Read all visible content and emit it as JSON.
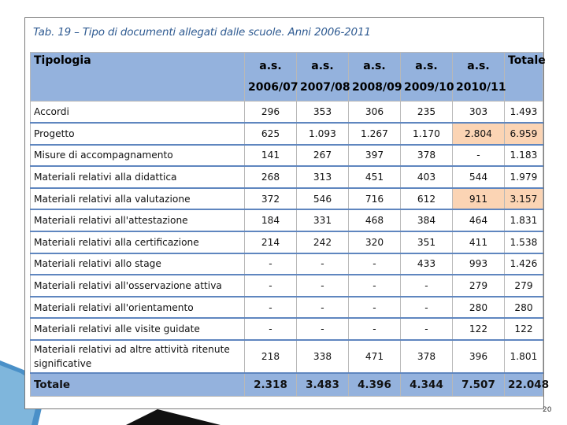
{
  "caption": "Tab. 19 – Tipo di documenti allegati dalle scuole. Anni 2006-2011",
  "header": {
    "tipologia": "Tipologia",
    "years": [
      {
        "line1": "a.s.",
        "line2": "2006/07"
      },
      {
        "line1": "a.s.",
        "line2": "2007/08"
      },
      {
        "line1": "a.s.",
        "line2": "2008/09"
      },
      {
        "line1": "a.s.",
        "line2": "2009/10"
      },
      {
        "line1": "a.s.",
        "line2": "2010/11"
      }
    ],
    "totale": "Totale"
  },
  "rows": [
    {
      "label": "Accordi",
      "values": [
        "296",
        "353",
        "306",
        "235",
        "303",
        "1.493"
      ]
    },
    {
      "label": "Progetto",
      "values": [
        "625",
        "1.093",
        "1.267",
        "1.170",
        "2.804",
        "6.959"
      ]
    },
    {
      "label": "Misure di accompagnamento",
      "values": [
        "141",
        "267",
        "397",
        "378",
        "-",
        "1.183"
      ]
    },
    {
      "label": "Materiali relativi alla didattica",
      "values": [
        "268",
        "313",
        "451",
        "403",
        "544",
        "1.979"
      ]
    },
    {
      "label": "Materiali relativi alla valutazione",
      "values": [
        "372",
        "546",
        "716",
        "612",
        "911",
        "3.157"
      ]
    },
    {
      "label": "Materiali relativi all'attestazione",
      "values": [
        "184",
        "331",
        "468",
        "384",
        "464",
        "1.831"
      ]
    },
    {
      "label": "Materiali relativi alla certificazione",
      "values": [
        "214",
        "242",
        "320",
        "351",
        "411",
        "1.538"
      ]
    },
    {
      "label": "Materiali relativi allo stage",
      "values": [
        "-",
        "-",
        "-",
        "433",
        "993",
        "1.426"
      ]
    },
    {
      "label": "Materiali relativi all'osservazione attiva",
      "values": [
        "-",
        "-",
        "-",
        "-",
        "279",
        "279"
      ]
    },
    {
      "label": "Materiali relativi all'orientamento",
      "values": [
        "-",
        "-",
        "-",
        "-",
        "280",
        "280"
      ]
    },
    {
      "label": "Materiali relativi alle visite guidate",
      "values": [
        "-",
        "-",
        "-",
        "-",
        "122",
        "122"
      ]
    },
    {
      "label": "Materiali relativi ad altre attività ritenute significative",
      "values": [
        "218",
        "338",
        "471",
        "378",
        "396",
        "1.801"
      ]
    }
  ],
  "total_row": {
    "label": "Totale",
    "values": [
      "2.318",
      "3.483",
      "4.396",
      "4.344",
      "7.507",
      "22.048"
    ]
  },
  "highlight_color": "#fbd4b4",
  "header_color": "#94b2dd",
  "page_number": "20"
}
